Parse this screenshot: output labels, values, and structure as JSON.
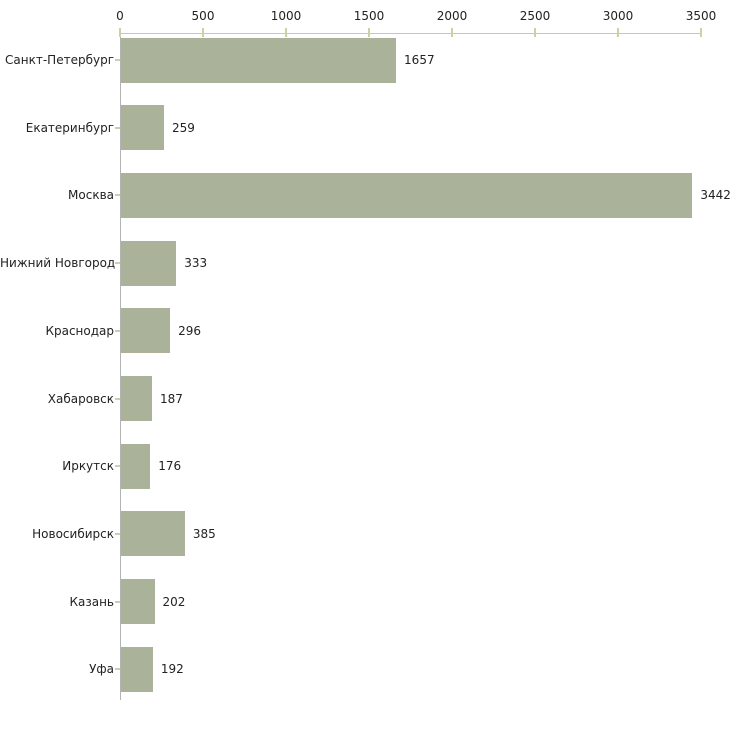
{
  "chart_data": {
    "type": "bar",
    "orientation": "horizontal",
    "title": "",
    "xlabel": "",
    "ylabel": "",
    "categories": [
      "Санкт-Петербург",
      "Екатеринбург",
      "Москва",
      "Нижний Новгород",
      "Краснодар",
      "Хабаровск",
      "Иркутск",
      "Новосибирск",
      "Казань",
      "Уфа"
    ],
    "values": [
      1657,
      259,
      3442,
      333,
      296,
      187,
      176,
      385,
      202,
      192
    ],
    "value_labels": [
      "1657",
      "259",
      "3442",
      "333",
      "296",
      "187",
      "176",
      "385",
      "202",
      "192"
    ],
    "xlim": [
      0,
      3500
    ],
    "x_ticks": [
      "0",
      "500",
      "1000",
      "1500",
      "2000",
      "2500",
      "3000",
      "3500"
    ],
    "x_tick_values": [
      0,
      500,
      1000,
      1500,
      2000,
      2500,
      3000,
      3500
    ],
    "grid": false,
    "legend_position": "none",
    "axis_position": "top",
    "colors": {
      "bar": "#abb29a",
      "axis_top": "#c6c6c2",
      "axis_left": "#b3b3b3",
      "tick": "#cdd1a2",
      "text": "#222222",
      "background": "#ffffff"
    }
  }
}
